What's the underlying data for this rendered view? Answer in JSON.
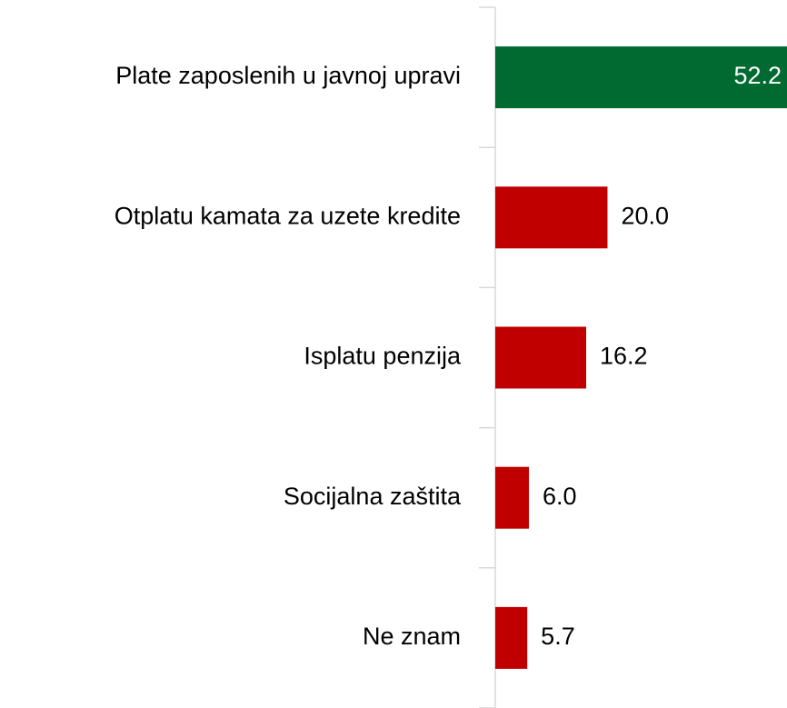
{
  "chart_data": {
    "type": "barh",
    "categories": [
      "Plate zaposlenih u javnoj upravi",
      "Otplatu kamata za uzete kredite",
      "Isplatu penzija",
      "Socijalna zaštita",
      "Ne znam"
    ],
    "values": [
      52.2,
      20,
      16.2,
      6,
      5.7
    ],
    "value_labels": [
      "52.2",
      "20.0",
      "16.2",
      "6.0",
      "5.7"
    ],
    "colors": [
      "#006a31",
      "#c00000",
      "#c00000",
      "#c00000",
      "#c00000"
    ],
    "xlim": [
      0,
      52
    ]
  }
}
